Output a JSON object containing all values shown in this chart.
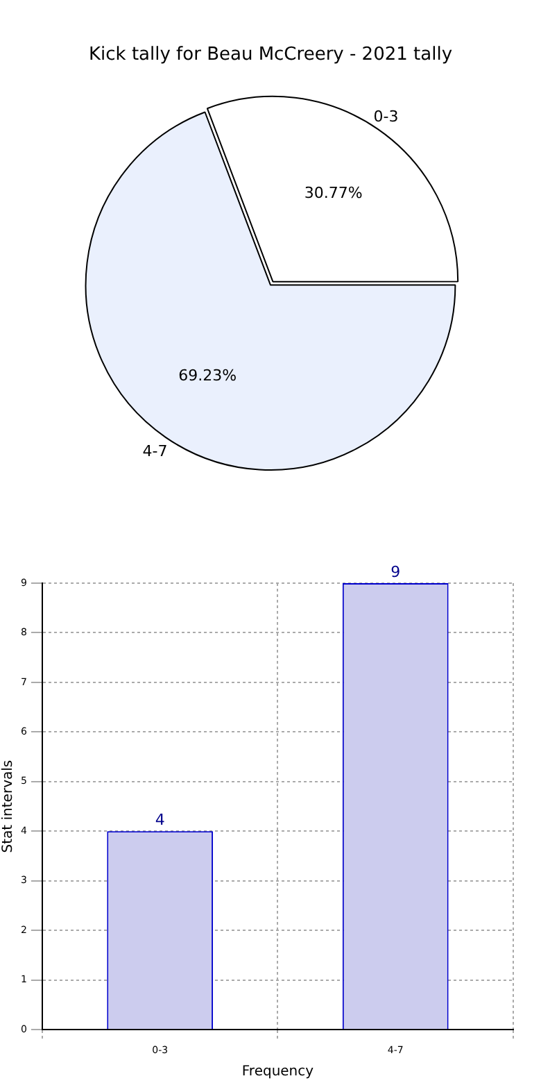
{
  "chart_data": [
    {
      "type": "pie",
      "title": "Kick tally for Beau McCreery - 2021 tally",
      "categories": [
        "0-3",
        "4-7"
      ],
      "values": [
        30.77,
        69.23
      ],
      "colors": [
        "#ffffff",
        "#eaf0fd"
      ],
      "value_labels": [
        "30.77%",
        "69.23%"
      ]
    },
    {
      "type": "bar",
      "xlabel": "Frequency",
      "ylabel": "Stat intervals",
      "categories": [
        "0-3",
        "4-7"
      ],
      "values": [
        4,
        9
      ],
      "color": "#ccccee",
      "ylim": [
        0,
        9
      ],
      "yticks": [
        0,
        1,
        2,
        3,
        4,
        5,
        6,
        7,
        8,
        9
      ],
      "grid": true,
      "data_labels": true
    }
  ]
}
